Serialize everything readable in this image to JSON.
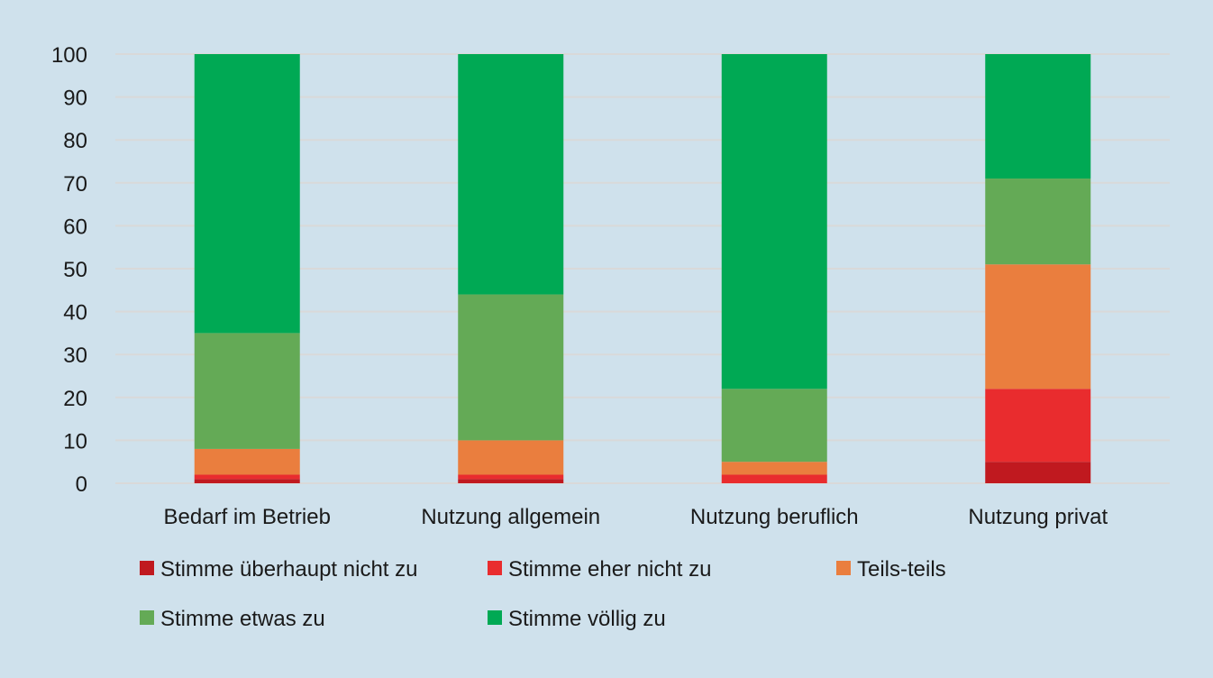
{
  "chart_data": {
    "type": "bar",
    "stacked": true,
    "categories": [
      "Bedarf im Betrieb",
      "Nutzung allgemein",
      "Nutzung beruflich",
      "Nutzung privat"
    ],
    "ylim": [
      0,
      100
    ],
    "yticks": [
      0,
      10,
      20,
      30,
      40,
      50,
      60,
      70,
      80,
      90,
      100
    ],
    "grid": true,
    "legend_position": "bottom",
    "series": [
      {
        "name": "Stimme überhaupt nicht zu",
        "color": "#c0191f",
        "values": [
          1,
          1,
          0,
          5
        ]
      },
      {
        "name": "Stimme eher nicht zu",
        "color": "#e92c2e",
        "values": [
          1,
          1,
          2,
          17
        ]
      },
      {
        "name": "Teils-teils",
        "color": "#ea7e3e",
        "values": [
          6,
          8,
          3,
          29
        ]
      },
      {
        "name": "Stimme etwas zu",
        "color": "#64aa56",
        "values": [
          27,
          34,
          17,
          20
        ]
      },
      {
        "name": "Stimme völlig zu",
        "color": "#00a954",
        "values": [
          65,
          56,
          78,
          29
        ]
      }
    ]
  }
}
